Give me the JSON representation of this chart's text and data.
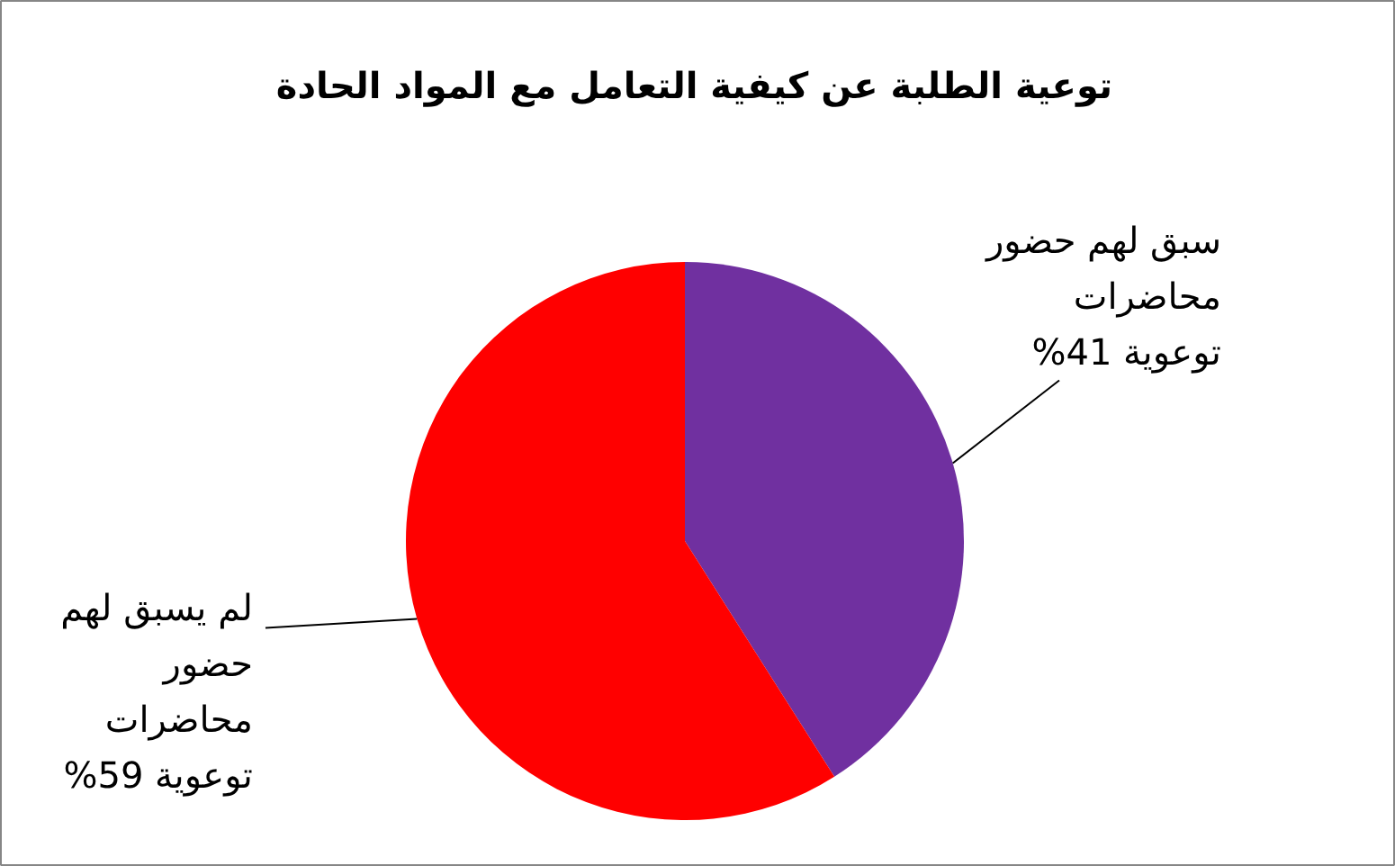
{
  "chart_data": {
    "type": "pie",
    "title": "توعية الطلبة عن كيفية التعامل مع المواد الحادة",
    "categories": [
      "سبق لهم حضور محاضرات توعوية",
      "لم يسبق لهم حضور محاضرات توعوية"
    ],
    "values": [
      41,
      59
    ],
    "colors": [
      "#7030a0",
      "#ff0000"
    ],
    "value_labels": [
      "41%",
      "59%"
    ]
  }
}
